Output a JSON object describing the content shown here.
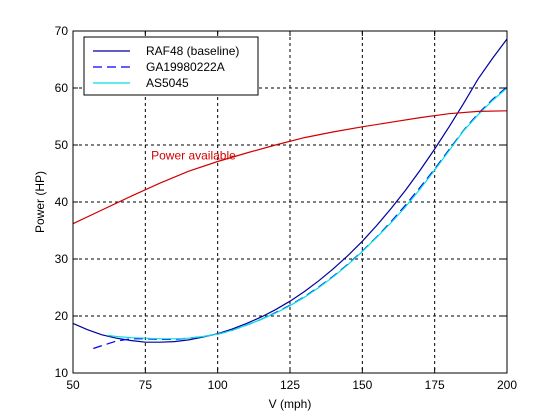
{
  "chart_data": {
    "type": "line",
    "title": "",
    "xlabel": "V (mph)",
    "ylabel": "Power (HP)",
    "xlim": [
      50,
      200
    ],
    "ylim": [
      10,
      70
    ],
    "xticks": [
      50,
      75,
      100,
      125,
      150,
      175,
      200
    ],
    "yticks": [
      10,
      20,
      30,
      40,
      50,
      60,
      70
    ],
    "xtick_labels": [
      "50",
      "75",
      "100",
      "125",
      "150",
      "175",
      "200"
    ],
    "ytick_labels": [
      "10",
      "20",
      "30",
      "40",
      "50",
      "60",
      "70"
    ],
    "grid": true,
    "legend": {
      "placement": "top-left"
    },
    "series": [
      {
        "name": "RAF48 (baseline)",
        "color": "#0000a0",
        "dash": "solid",
        "x": [
          50,
          55,
          60,
          65,
          70,
          75,
          80,
          85,
          90,
          95,
          100,
          105,
          110,
          115,
          120,
          125,
          130,
          135,
          140,
          145,
          150,
          155,
          160,
          165,
          170,
          175,
          180,
          185,
          190,
          195,
          200
        ],
        "y": [
          18.7,
          17.6,
          16.7,
          16.1,
          15.7,
          15.4,
          15.4,
          15.5,
          15.8,
          16.3,
          16.9,
          17.7,
          18.7,
          19.8,
          21.1,
          22.6,
          24.3,
          26.2,
          28.3,
          30.6,
          33.1,
          35.9,
          38.9,
          42.1,
          45.6,
          49.3,
          53.2,
          57.3,
          61.6,
          65.2,
          68.6
        ]
      },
      {
        "name": "GA19980222A",
        "color": "#0000ff",
        "dash": "dashed",
        "x": [
          57,
          60,
          65,
          70,
          75,
          80,
          85,
          90,
          95,
          100,
          105,
          110,
          115,
          120,
          125,
          130,
          135,
          140,
          145,
          150,
          155,
          160,
          165,
          170,
          175,
          180,
          185,
          190,
          195,
          200
        ],
        "y": [
          14.3,
          14.8,
          15.6,
          16.0,
          16.0,
          15.9,
          15.9,
          16.1,
          16.4,
          16.8,
          17.5,
          18.4,
          19.4,
          20.6,
          21.9,
          23.4,
          25.1,
          27.0,
          29.1,
          31.4,
          33.9,
          36.6,
          39.5,
          42.6,
          45.8,
          49.2,
          52.6,
          55.5,
          58.0,
          60.2
        ]
      },
      {
        "name": "AS5045",
        "color": "#00e0e0",
        "dash": "solid",
        "x": [
          62,
          65,
          70,
          75,
          80,
          85,
          90,
          95,
          100,
          105,
          110,
          115,
          120,
          125,
          130,
          135,
          140,
          145,
          150,
          155,
          160,
          165,
          170,
          175,
          180,
          185,
          190,
          195,
          200
        ],
        "y": [
          16.6,
          16.4,
          16.2,
          16.1,
          16.0,
          16.0,
          16.1,
          16.4,
          16.8,
          17.5,
          18.4,
          19.4,
          20.5,
          21.8,
          23.3,
          25.0,
          26.9,
          29.0,
          31.3,
          33.8,
          36.4,
          39.2,
          42.3,
          45.6,
          49.0,
          52.5,
          55.3,
          57.8,
          60.0
        ]
      },
      {
        "name": "",
        "color": "#d00000",
        "dash": "solid",
        "x": [
          50,
          60,
          70,
          80,
          90,
          100,
          110,
          120,
          130,
          140,
          150,
          160,
          170,
          180,
          190,
          200
        ],
        "y": [
          36.2,
          38.6,
          41.0,
          43.3,
          45.4,
          47.1,
          48.6,
          50.0,
          51.3,
          52.3,
          53.2,
          54.0,
          54.8,
          55.5,
          55.9,
          56.0
        ]
      }
    ],
    "annotations": [
      {
        "text": "Power available",
        "x": 77,
        "y": 47.5,
        "color": "#d00000"
      }
    ]
  }
}
